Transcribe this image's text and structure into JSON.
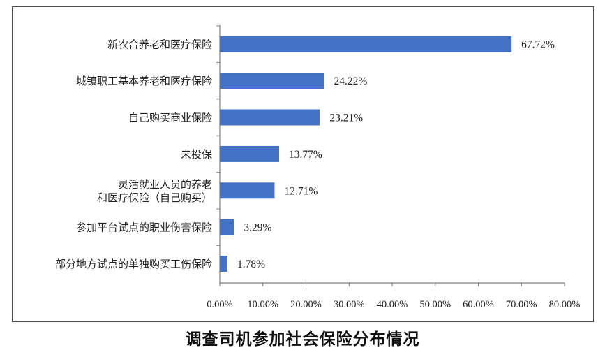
{
  "chart_data": {
    "type": "bar",
    "orientation": "horizontal",
    "title": "调查司机参加社会保险分布情况",
    "categories": [
      [
        "新农合养老和医疗保险"
      ],
      [
        "城镇职工基本养老和医疗保险"
      ],
      [
        "自己购买商业保险"
      ],
      [
        "未投保"
      ],
      [
        "灵活就业人员的养老",
        "和医疗保险（自己购买）"
      ],
      [
        "参加平台试点的职业伤害保险"
      ],
      [
        "部分地方试点的单独购买工伤保险"
      ]
    ],
    "values": [
      67.72,
      24.22,
      23.21,
      13.77,
      12.71,
      3.29,
      1.78
    ],
    "value_labels": [
      "67.72%",
      "24.22%",
      "23.21%",
      "13.77%",
      "12.71%",
      "3.29%",
      "1.78%"
    ],
    "xlim": [
      0,
      80
    ],
    "xticks": [
      0,
      10,
      20,
      30,
      40,
      50,
      60,
      70,
      80
    ],
    "xtick_labels": [
      "0.00%",
      "10.00%",
      "20.00%",
      "30.00%",
      "40.00%",
      "50.00%",
      "60.00%",
      "70.00%",
      "80.00%"
    ],
    "bar_color": "#4472c4",
    "grid": false,
    "legend": "none"
  }
}
